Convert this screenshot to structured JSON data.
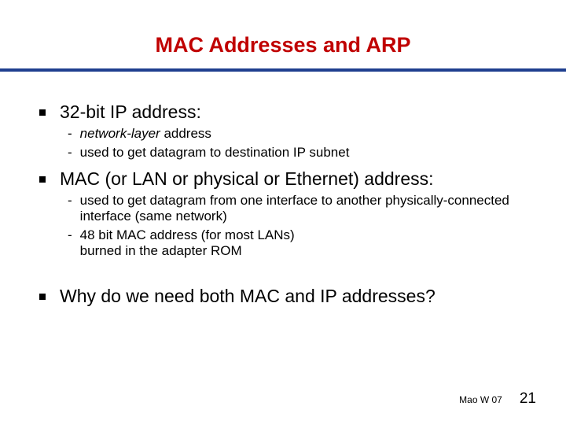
{
  "title": {
    "text": "MAC Addresses and ARP",
    "color": "#c00000",
    "fontsize": 27
  },
  "rule_color": "#1f3f8f",
  "bullets": {
    "square_color": "#000000",
    "top_fontsize": 23,
    "sub_fontsize": 17,
    "items": [
      {
        "text": "32-bit IP address:",
        "subs": [
          {
            "text_html": "<span class=\"italic\">network-layer</span> address"
          },
          {
            "text": "used to get datagram to destination IP subnet"
          }
        ]
      },
      {
        "text": "MAC (or LAN or physical or Ethernet) address:",
        "subs": [
          {
            "text": "used to get datagram from one interface to another physically-connected interface (same network)"
          },
          {
            "text": "48 bit MAC address (for most LANs)\nburned in the adapter ROM"
          }
        ]
      },
      {
        "text": "Why do we need both MAC and IP addresses?",
        "subs": [],
        "gap_before": true
      }
    ]
  },
  "footer": {
    "label": "Mao W 07",
    "label_fontsize": 12,
    "page": "21",
    "page_fontsize": 19
  }
}
